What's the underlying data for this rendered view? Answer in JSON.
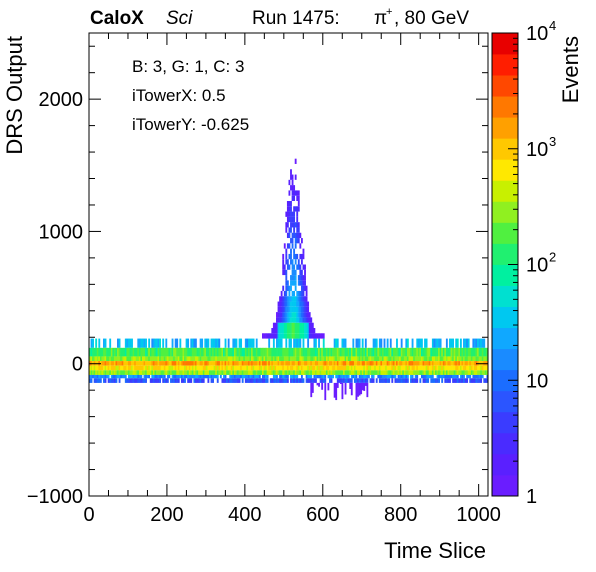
{
  "header": {
    "brand": "CaloX",
    "subtitle": "Sci",
    "run": "Run 1475:",
    "beam_particle": "π",
    "beam_charge": "+",
    "beam_energy": ", 80 GeV"
  },
  "annotations": {
    "channel": "B: 3, G: 1, C: 3",
    "itower_x": "iTowerX: 0.5",
    "itower_y": "iTowerY: -0.625"
  },
  "chart_data": {
    "type": "heatmap",
    "xlabel": "Time Slice",
    "ylabel": "DRS Output",
    "zlabel": "Events",
    "xlim": [
      0,
      1024
    ],
    "ylim": [
      -1000,
      2500
    ],
    "zlim": [
      1,
      10000
    ],
    "z_scale": "log",
    "x_ticks": [
      0,
      200,
      400,
      600,
      800,
      1000
    ],
    "x_tick_labels": [
      "0",
      "200",
      "400",
      "600",
      "800",
      "1000"
    ],
    "y_ticks": [
      -1000,
      0,
      1000,
      2000
    ],
    "y_tick_labels": [
      "−1000",
      "0",
      "1000",
      "2000"
    ],
    "z_ticks": [
      1,
      10,
      100,
      1000,
      10000
    ],
    "z_tick_labels": {
      "base": [
        "",
        "",
        "10",
        "10",
        "10"
      ],
      "exp": [
        "",
        "",
        "2",
        "3",
        "4"
      ],
      "plain": [
        "1",
        "10",
        "",
        "",
        ""
      ]
    },
    "palette": [
      "#6a1dff",
      "#5a20ff",
      "#4a2bff",
      "#3a3cff",
      "#2b55ff",
      "#1b6dff",
      "#1a8bff",
      "#10a8ff",
      "#00c8f0",
      "#00e0d0",
      "#00f0a0",
      "#20f070",
      "#50f040",
      "#90f020",
      "#c8f000",
      "#ffe800",
      "#ffc800",
      "#ffa000",
      "#ff7800",
      "#ff4800",
      "#ff1e00",
      "#e80000"
    ],
    "bands": [
      {
        "y0": 120,
        "y1": 190,
        "level": 0.35,
        "note": "sparse"
      },
      {
        "y0": 55,
        "y1": 120,
        "level": 0.55
      },
      {
        "y0": 20,
        "y1": 55,
        "level": 0.62
      },
      {
        "y0": -15,
        "y1": 20,
        "level": 0.8
      },
      {
        "y0": -50,
        "y1": -15,
        "level": 0.72
      },
      {
        "y0": -85,
        "y1": -50,
        "level": 0.62
      },
      {
        "y0": -110,
        "y1": -85,
        "level": 0.28
      },
      {
        "y0": -145,
        "y1": -110,
        "level": 0.18
      }
    ],
    "peak": {
      "x_center": 525,
      "y_max": 1520,
      "note": "pulse near time slice 500-560"
    }
  }
}
